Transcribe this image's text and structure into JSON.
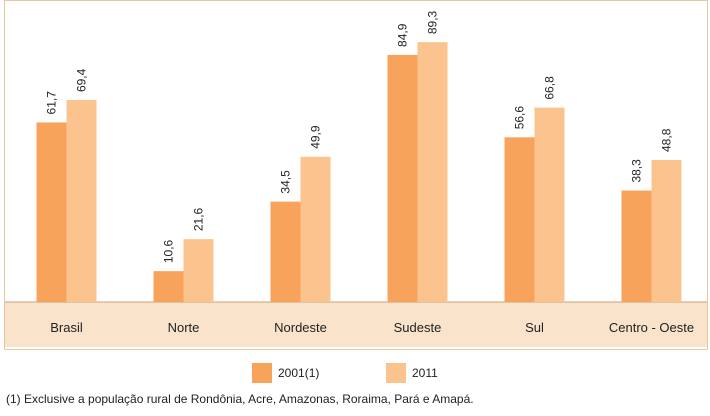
{
  "chart_data": {
    "type": "bar",
    "categories": [
      "Brasil",
      "Norte",
      "Nordeste",
      "Sudeste",
      "Sul",
      "Centro - Oeste"
    ],
    "series": [
      {
        "name": "2001(1)",
        "values": [
          61.7,
          10.6,
          34.5,
          84.9,
          56.6,
          38.3
        ],
        "labels": [
          "61,7",
          "10,6",
          "34,5",
          "84,9",
          "56,6",
          "38,3"
        ],
        "color": "#f7a35c"
      },
      {
        "name": "2011",
        "values": [
          69.4,
          21.6,
          49.9,
          89.3,
          66.8,
          48.8
        ],
        "labels": [
          "69,4",
          "21,6",
          "49,9",
          "89,3",
          "66,8",
          "48,8"
        ],
        "color": "#fbc48f"
      }
    ],
    "ylim": [
      0,
      100
    ],
    "grid": false,
    "legend": "bottom-center",
    "category_band_color": "#f9e3cb"
  },
  "footnote": "(1) Exclusive a população rural de Rondônia, Acre, Amazonas, Roraima, Pará e Amapá."
}
